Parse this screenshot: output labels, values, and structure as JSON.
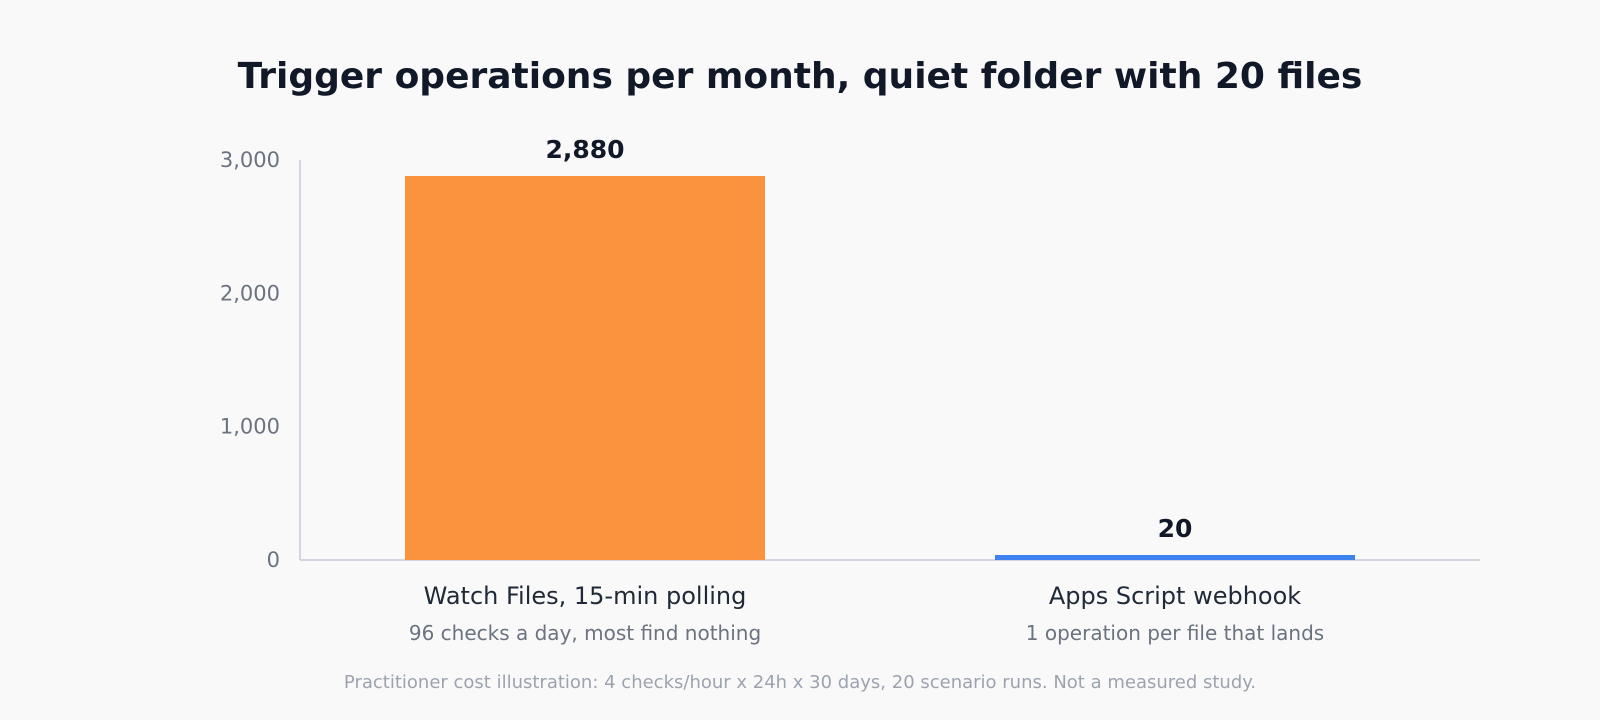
{
  "chart_data": {
    "type": "bar",
    "title": "Trigger operations per month, quiet folder with 20 files",
    "categories": [
      "Watch Files, 15-min polling",
      "Apps Script webhook"
    ],
    "category_notes": [
      "96 checks a day, most find nothing",
      "1 operation per file that lands"
    ],
    "values": [
      2880,
      20
    ],
    "value_labels": [
      "2,880",
      "20"
    ],
    "colors": [
      "#fa933d",
      "#3d82ee"
    ],
    "ylim": [
      0,
      3000
    ],
    "yticks": [
      0,
      1000,
      2000,
      3000
    ],
    "ytick_labels": [
      "0",
      "1,000",
      "2,000",
      "3,000"
    ],
    "xlabel": "",
    "ylabel": "",
    "grid": false,
    "footnote": "Practitioner cost illustration: 4 checks/hour x 24h x 30 days, 20 scenario runs. Not a measured study."
  }
}
